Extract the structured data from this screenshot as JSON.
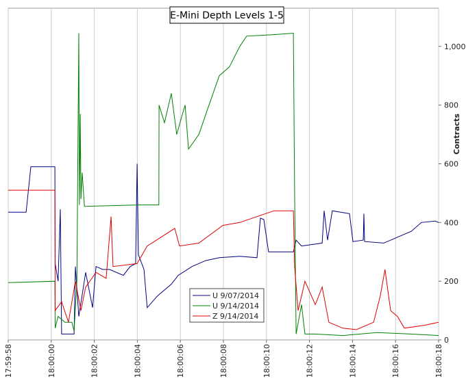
{
  "chart_data": {
    "type": "line",
    "title": "E-Mini Depth Levels 1-5",
    "y_label": "Contracts",
    "y_axis_side": "right",
    "grid": "x",
    "legend": "bottom-center",
    "xlim": [
      64798,
      64818
    ],
    "xticks": [
      {
        "value": 64798,
        "label": "17:59:58"
      },
      {
        "value": 64800,
        "label": "18:00:00"
      },
      {
        "value": 64802,
        "label": "18:00:02"
      },
      {
        "value": 64804,
        "label": "18:00:04"
      },
      {
        "value": 64806,
        "label": "18:00:06"
      },
      {
        "value": 64808,
        "label": "18:00:08"
      },
      {
        "value": 64810,
        "label": "18:00:10"
      },
      {
        "value": 64812,
        "label": "18:00:12"
      },
      {
        "value": 64814,
        "label": "18:00:14"
      },
      {
        "value": 64816,
        "label": "18:00:16"
      },
      {
        "value": 64818,
        "label": "18:00:18"
      }
    ],
    "ylim": [
      0,
      1130
    ],
    "yticks": [
      0,
      200,
      400,
      600,
      800,
      {
        "value": 1000,
        "label": "1,000"
      }
    ],
    "series": [
      {
        "name": "U 9/07/2014",
        "color": "#000080",
        "x": [
          64798,
          64798.83,
          64799.05,
          64800.17,
          64800.18,
          64800.32,
          64800.42,
          64800.48,
          64801.06,
          64801.12,
          64801.28,
          64801.6,
          64801.92,
          64802.08,
          64802.39,
          64802.71,
          64803.35,
          64803.67,
          64803.92,
          64803.99,
          64804.05,
          64804.31,
          64804.46,
          64804.94,
          64805.58,
          64805.9,
          64806.54,
          64807.17,
          64807.81,
          64808.76,
          64809.56,
          64809.72,
          64809.88,
          64810.1,
          64811.25,
          64811.38,
          64811.63,
          64812.59,
          64812.68,
          64812.84,
          64813.06,
          64813.86,
          64814.02,
          64814.5,
          64814.53,
          64814.56,
          64815.45,
          64816.09,
          64816.73,
          64817.2,
          64817.84,
          64818
        ],
        "values": [
          435,
          435,
          590,
          590,
          260,
          200,
          445,
          20,
          20,
          250,
          80,
          230,
          110,
          250,
          240,
          240,
          220,
          250,
          260,
          600,
          290,
          240,
          110,
          150,
          190,
          220,
          250,
          270,
          280,
          285,
          280,
          415,
          410,
          300,
          300,
          340,
          320,
          330,
          440,
          340,
          440,
          430,
          335,
          340,
          430,
          335,
          330,
          350,
          370,
          400,
          405,
          400
        ]
      },
      {
        "name": "U 9/14/2014",
        "color": "#008000",
        "x": [
          64798,
          64800.17,
          64800.18,
          64800.32,
          64800.64,
          64800.96,
          64801.06,
          64801.19,
          64801.28,
          64801.31,
          64801.35,
          64801.38,
          64801.44,
          64801.54,
          64804.05,
          64805,
          64805.01,
          64805.26,
          64805.58,
          64805.83,
          64806.06,
          64806.22,
          64806.38,
          64806.86,
          64807.33,
          64807.81,
          64808.28,
          64808.76,
          64809.08,
          64810.35,
          64811.25,
          64811.31,
          64811.38,
          64811.63,
          64811.79,
          64812.27,
          64813.54,
          64815.13,
          64816.73,
          64818
        ],
        "values": [
          195,
          200,
          40,
          80,
          60,
          60,
          30,
          200,
          1045,
          460,
          770,
          480,
          570,
          455,
          460,
          460,
          800,
          740,
          840,
          700,
          760,
          800,
          650,
          700,
          800,
          900,
          930,
          1000,
          1035,
          1040,
          1045,
          500,
          20,
          120,
          20,
          20,
          15,
          25,
          20,
          15
        ]
      },
      {
        "name": "Z 9/14/2014",
        "color": "#dd0000",
        "x": [
          64798,
          64800.17,
          64800.18,
          64800.48,
          64800.8,
          64801.12,
          64801.38,
          64801.6,
          64802.08,
          64802.55,
          64802.78,
          64802.87,
          64803.99,
          64804.46,
          64805.1,
          64805.74,
          64805.96,
          64806.86,
          64807.97,
          64808.76,
          64809.56,
          64810.35,
          64811.25,
          64811.31,
          64811.47,
          64811.79,
          64812.27,
          64812.59,
          64812.9,
          64813.54,
          64814.18,
          64814.98,
          64815.29,
          64815.51,
          64815.77,
          64816.09,
          64816.41,
          64817.36,
          64818
        ],
        "values": [
          510,
          510,
          100,
          130,
          60,
          200,
          100,
          180,
          230,
          210,
          420,
          250,
          260,
          320,
          350,
          380,
          320,
          330,
          390,
          400,
          420,
          440,
          440,
          250,
          100,
          200,
          120,
          180,
          60,
          40,
          35,
          60,
          150,
          240,
          100,
          80,
          40,
          50,
          60
        ]
      }
    ]
  }
}
